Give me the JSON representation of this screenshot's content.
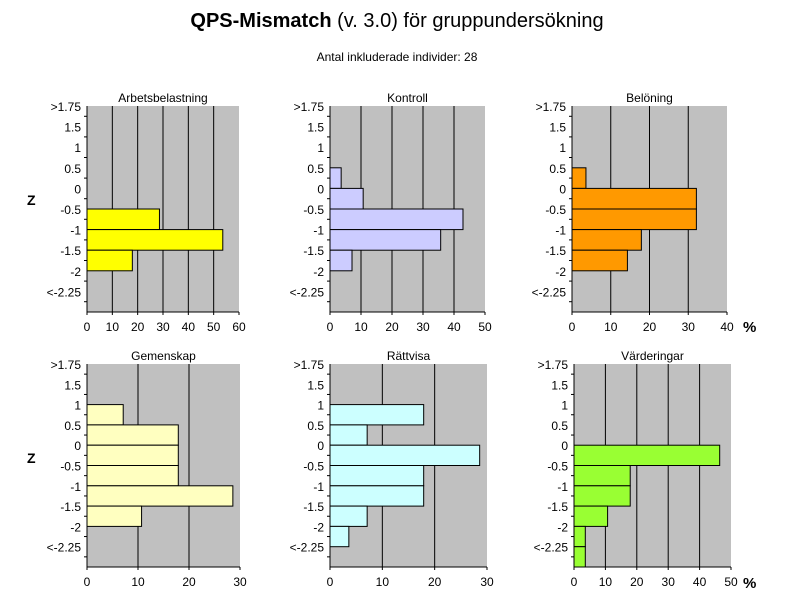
{
  "title": {
    "main": "QPS-Mismatch",
    "rest": " (v. 3.0) för gruppundersökning"
  },
  "subtitle": "Antal inkluderade individer:  28",
  "z_axis_label": "Z",
  "percent_label": "%",
  "chart_data": [
    {
      "type": "bar",
      "orientation": "horizontal",
      "title": "Arbetsbelastning",
      "categories": [
        ">1.75",
        "1.5",
        "1",
        "0.5",
        "0",
        "-0.5",
        "-1",
        "-1.5",
        "-2",
        "<-2.25"
      ],
      "values": [
        0,
        0,
        0,
        0,
        0,
        28.6,
        53.6,
        17.9,
        0,
        0
      ],
      "xlim": [
        0,
        60
      ],
      "xticks": [
        0,
        10,
        20,
        30,
        40,
        50,
        60
      ],
      "color": "#FFFF00"
    },
    {
      "type": "bar",
      "orientation": "horizontal",
      "title": "Kontroll",
      "categories": [
        ">1.75",
        "1.5",
        "1",
        "0.5",
        "0",
        "-0.5",
        "-1",
        "-1.5",
        "-2",
        "<-2.25"
      ],
      "values": [
        0,
        0,
        0,
        3.6,
        10.7,
        42.9,
        35.7,
        7.1,
        0,
        0
      ],
      "xlim": [
        0,
        50
      ],
      "xticks": [
        0,
        10,
        20,
        30,
        40,
        50
      ],
      "color": "#CCCCFF"
    },
    {
      "type": "bar",
      "orientation": "horizontal",
      "title": "Belöning",
      "categories": [
        ">1.75",
        "1.5",
        "1",
        "0.5",
        "0",
        "-0.5",
        "-1",
        "-1.5",
        "-2",
        "<-2.25"
      ],
      "values": [
        0,
        0,
        0,
        3.6,
        32.1,
        32.1,
        17.9,
        14.3,
        0,
        0
      ],
      "xlim": [
        0,
        40
      ],
      "xticks": [
        0,
        10,
        20,
        30,
        40
      ],
      "color": "#FF9900"
    },
    {
      "type": "bar",
      "orientation": "horizontal",
      "title": "Gemenskap",
      "categories": [
        ">1.75",
        "1.5",
        "1",
        "0.5",
        "0",
        "-0.5",
        "-1",
        "-1.5",
        "-2",
        "<-2.25"
      ],
      "values": [
        0,
        0,
        7.1,
        17.9,
        17.9,
        17.9,
        28.6,
        10.7,
        0,
        0
      ],
      "xlim": [
        0,
        30
      ],
      "xticks": [
        0,
        10,
        20,
        30
      ],
      "color": "#FFFFC0"
    },
    {
      "type": "bar",
      "orientation": "horizontal",
      "title": "Rättvisa",
      "categories": [
        ">1.75",
        "1.5",
        "1",
        "0.5",
        "0",
        "-0.5",
        "-1",
        "-1.5",
        "-2",
        "<-2.25"
      ],
      "values": [
        0,
        0,
        17.9,
        7.1,
        28.6,
        17.9,
        17.9,
        7.1,
        3.6,
        0
      ],
      "xlim": [
        0,
        30
      ],
      "xticks": [
        0,
        10,
        20,
        30
      ],
      "color": "#CCFFFF"
    },
    {
      "type": "bar",
      "orientation": "horizontal",
      "title": "Värderingar",
      "categories": [
        ">1.75",
        "1.5",
        "1",
        "0.5",
        "0",
        "-0.5",
        "-1",
        "-1.5",
        "-2",
        "<-2.25"
      ],
      "values": [
        0,
        0,
        0,
        0,
        46.4,
        17.9,
        17.9,
        10.7,
        3.6,
        3.6
      ],
      "xlim": [
        0,
        50
      ],
      "xticks": [
        0,
        10,
        20,
        30,
        40,
        50
      ],
      "color": "#99FF33"
    }
  ]
}
